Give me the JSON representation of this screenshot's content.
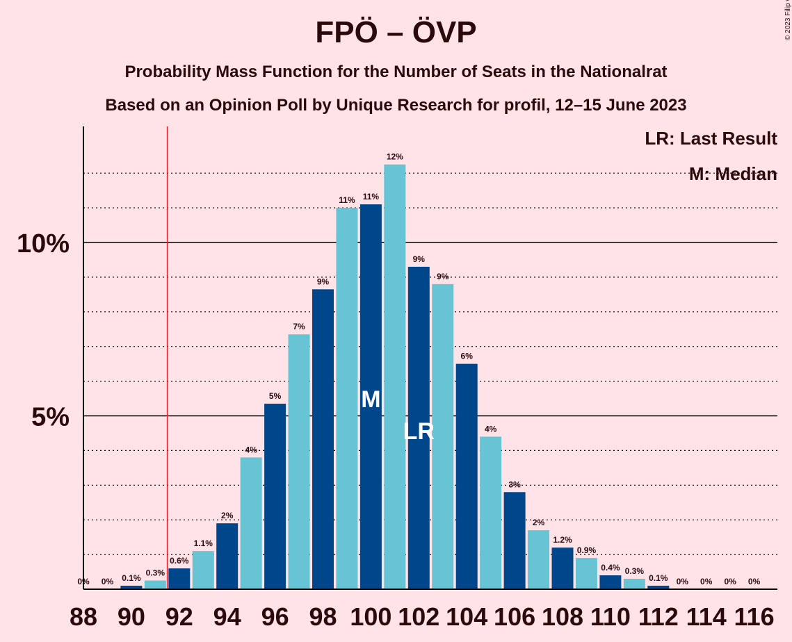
{
  "title": "FPÖ – ÖVP",
  "subtitle1": "Probability Mass Function for the Number of Seats in the Nationalrat",
  "subtitle2": "Based on an Opinion Poll by Unique Research for profil, 12–15 June 2023",
  "credit": "© 2023 Filip van Laenen",
  "legend": {
    "last_result": "LR: Last Result",
    "median": "M: Median"
  },
  "colors": {
    "background": "#FFE3E6",
    "dark_bar": "#00468B",
    "light_bar": "#67C4D4",
    "threshold_line": "#E0202A",
    "text": "#2B0A0E"
  },
  "chart_data": {
    "type": "bar",
    "x": [
      88,
      89,
      90,
      91,
      92,
      93,
      94,
      95,
      96,
      97,
      98,
      99,
      100,
      101,
      102,
      103,
      104,
      105,
      106,
      107,
      108,
      109,
      110,
      111,
      112,
      113,
      114,
      115,
      116
    ],
    "values": [
      0,
      0,
      0.1,
      0.25,
      0.6,
      1.1,
      1.9,
      3.8,
      5.35,
      7.35,
      8.65,
      11.0,
      11.1,
      12.25,
      9.3,
      8.8,
      6.5,
      4.4,
      2.8,
      1.7,
      1.2,
      0.9,
      0.4,
      0.3,
      0.1,
      0,
      0,
      0,
      0
    ],
    "labels": [
      "0%",
      "0%",
      "0.1%",
      "0.3%",
      "0.6%",
      "1.1%",
      "2%",
      "4%",
      "5%",
      "7%",
      "9%",
      "11%",
      "11%",
      "12%",
      "9%",
      "9%",
      "6%",
      "4%",
      "3%",
      "2%",
      "1.2%",
      "0.9%",
      "0.4%",
      "0.3%",
      "0.1%",
      "0%",
      "0%",
      "0%",
      "0%"
    ],
    "x_ticks": [
      "88",
      "90",
      "92",
      "94",
      "96",
      "98",
      "100",
      "102",
      "104",
      "106",
      "108",
      "110",
      "112",
      "114",
      "116"
    ],
    "y_ticks": [
      "5%",
      "10%"
    ],
    "ylim": [
      0,
      13.3
    ],
    "majority_threshold": 91.5,
    "median": {
      "seat": 100,
      "label": "M"
    },
    "last_result": {
      "seat": 102,
      "label": "LR"
    }
  }
}
